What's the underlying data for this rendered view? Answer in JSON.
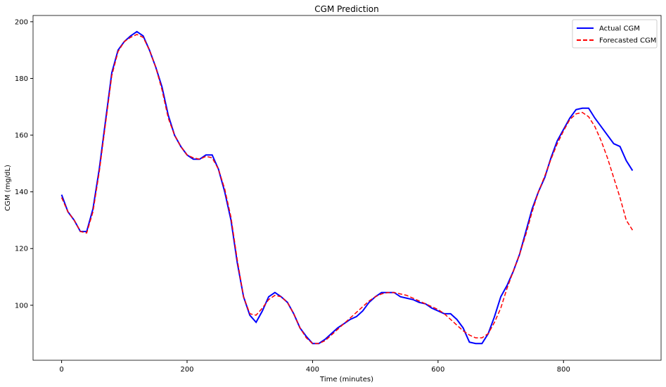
{
  "chart_data": {
    "type": "line",
    "title": "CGM Prediction",
    "xlabel": "Time (minutes)",
    "ylabel": "CGM (mg/dL)",
    "x": [
      0,
      10,
      20,
      30,
      40,
      50,
      60,
      70,
      80,
      90,
      100,
      110,
      120,
      130,
      140,
      150,
      160,
      170,
      180,
      190,
      200,
      210,
      220,
      230,
      240,
      250,
      260,
      270,
      280,
      290,
      300,
      310,
      320,
      330,
      340,
      350,
      360,
      370,
      380,
      390,
      400,
      410,
      420,
      430,
      440,
      450,
      460,
      470,
      480,
      490,
      500,
      510,
      520,
      530,
      540,
      550,
      560,
      570,
      580,
      590,
      600,
      610,
      620,
      630,
      640,
      650,
      660,
      670,
      680,
      690,
      700,
      710,
      720,
      730,
      740,
      750,
      760,
      770,
      780,
      790,
      800,
      810,
      820,
      830,
      840,
      850,
      860,
      870,
      880,
      890,
      900,
      910
    ],
    "series": [
      {
        "name": "Actual CGM",
        "color": "#0000ff",
        "values": [
          139,
          133,
          130,
          126,
          126,
          134,
          148,
          165,
          182,
          190,
          193,
          195,
          196.5,
          195,
          190,
          184,
          177,
          167,
          160,
          156,
          153,
          151.5,
          151.5,
          153,
          153,
          148,
          140,
          130,
          115,
          103,
          96.5,
          94,
          98,
          103,
          104.5,
          103,
          101,
          97,
          92,
          89,
          86.5,
          86.5,
          88,
          90,
          92,
          93.5,
          95,
          96,
          98,
          101,
          103,
          104.5,
          104.5,
          104.5,
          103,
          102.5,
          102,
          101,
          100.5,
          99,
          98,
          97,
          97,
          95,
          92,
          87,
          86.5,
          86.5,
          90,
          96,
          103,
          107,
          112,
          118,
          126,
          134,
          140,
          145,
          152,
          158,
          162,
          166,
          169,
          169.5,
          169.5,
          166,
          163,
          160,
          157,
          156,
          151,
          147.5
        ]
      },
      {
        "name": "Forecasted CGM",
        "color": "#ff0000",
        "values": [
          138,
          133,
          130,
          126,
          125.5,
          133,
          147,
          164,
          181,
          189.5,
          193,
          194.5,
          195.5,
          194.5,
          190,
          184,
          176,
          166,
          160,
          156,
          153,
          152,
          151.5,
          152.5,
          152,
          148,
          141,
          131,
          116,
          103,
          97,
          96.5,
          99,
          102,
          103.5,
          103,
          101,
          97,
          92,
          88.5,
          86.5,
          86.5,
          87.5,
          89.5,
          91.5,
          93.5,
          95.5,
          97.5,
          99.5,
          101.5,
          103,
          104,
          104.5,
          104.5,
          104,
          103.5,
          102.5,
          101.5,
          100.5,
          99.5,
          98.5,
          97,
          95,
          93,
          91,
          89.5,
          88.5,
          88.5,
          90,
          94,
          99,
          106,
          112,
          118,
          125,
          133,
          140,
          145.5,
          151.5,
          157,
          161.5,
          165.5,
          167.5,
          168,
          166.5,
          163,
          158,
          152,
          145,
          138,
          130,
          126.5
        ]
      }
    ],
    "xlim": [
      -45.5,
      955.5
    ],
    "ylim": [
      80.6,
      202.2
    ],
    "xticks": [
      0,
      200,
      400,
      600,
      800
    ],
    "yticks": [
      100,
      120,
      140,
      160,
      180,
      200
    ],
    "legend": "upper right"
  }
}
